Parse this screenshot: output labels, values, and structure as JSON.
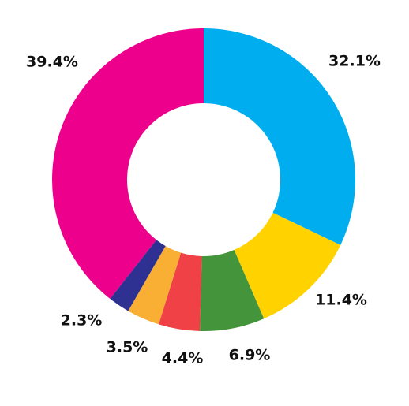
{
  "chart_data": {
    "type": "pie",
    "variant": "donut",
    "title": "",
    "legend": "none",
    "slices": [
      {
        "label": "32.1%",
        "value": 32.1,
        "color": "#00AEEF"
      },
      {
        "label": "11.4%",
        "value": 11.4,
        "color": "#FFD200"
      },
      {
        "label": "6.9%",
        "value": 6.9,
        "color": "#43943A"
      },
      {
        "label": "4.4%",
        "value": 4.4,
        "color": "#EF4146"
      },
      {
        "label": "3.5%",
        "value": 3.5,
        "color": "#F9AE34"
      },
      {
        "label": "2.3%",
        "value": 2.3,
        "color": "#2E3192"
      },
      {
        "label": "39.4%",
        "value": 39.4,
        "color": "#EC008C"
      }
    ]
  }
}
